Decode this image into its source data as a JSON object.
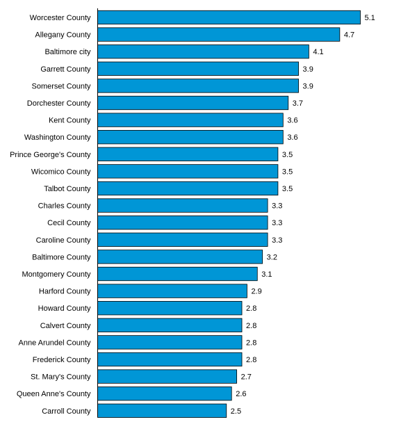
{
  "chart_data": {
    "type": "bar",
    "orientation": "horizontal",
    "title": "",
    "xlabel": "",
    "ylabel": "",
    "bar_color": "#0096d6",
    "xlim": [
      0,
      5.1
    ],
    "grid": false,
    "legend": "none",
    "categories": [
      "Worcester County",
      "Allegany County",
      "Baltimore city",
      "Garrett County",
      "Somerset County",
      "Dorchester County",
      "Kent County",
      "Washington County",
      "Prince George's County",
      "Wicomico County",
      "Talbot County",
      "Charles County",
      "Cecil County",
      "Caroline County",
      "Baltimore County",
      "Montgomery County",
      "Harford County",
      "Howard County",
      "Calvert County",
      "Anne Arundel County",
      "Frederick County",
      "St. Mary's County",
      "Queen Anne's County",
      "Carroll County"
    ],
    "values": [
      5.1,
      4.7,
      4.1,
      3.9,
      3.9,
      3.7,
      3.6,
      3.6,
      3.5,
      3.5,
      3.5,
      3.3,
      3.3,
      3.3,
      3.2,
      3.1,
      2.9,
      2.8,
      2.8,
      2.8,
      2.8,
      2.7,
      2.6,
      2.5
    ]
  }
}
